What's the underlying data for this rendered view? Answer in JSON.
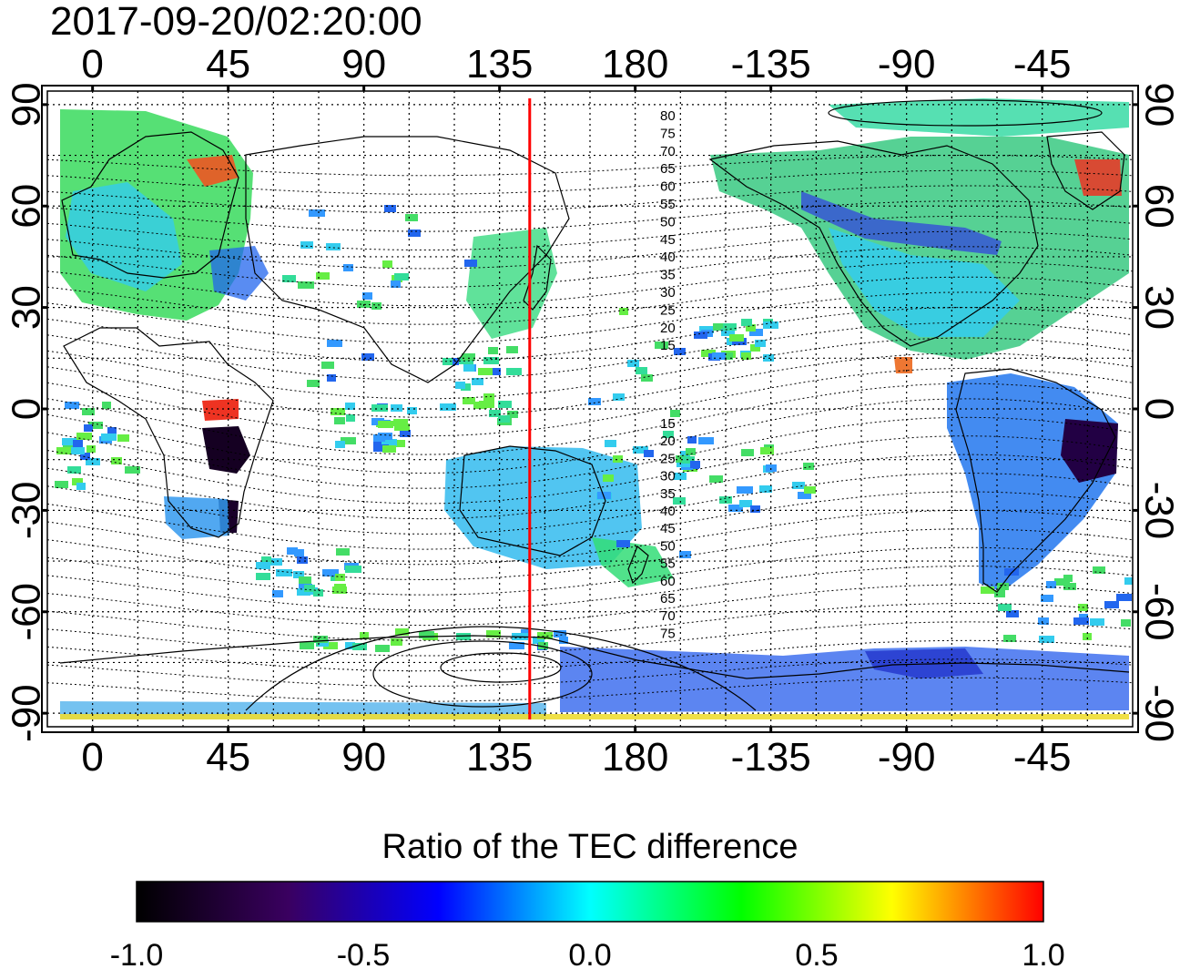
{
  "timestamp": "2017-09-20/02:20:00",
  "map": {
    "projection": "equirectangular",
    "center_longitude": 165,
    "top_axis_labels": [
      "0",
      "45",
      "90",
      "135",
      "180",
      "-135",
      "-90",
      "-45"
    ],
    "bottom_axis_labels": [
      "0",
      "45",
      "90",
      "135",
      "180",
      "-135",
      "-90",
      "-45"
    ],
    "left_axis_labels": [
      "90",
      "60",
      "30",
      "0",
      "-30",
      "-60",
      "-90"
    ],
    "right_axis_labels": [
      "90",
      "60",
      "30",
      "0",
      "-30",
      "-60",
      "-90"
    ],
    "grid": "dotted every 15 degrees",
    "marker_line_longitude": 145,
    "marker_line_color": "#ff0000",
    "contour_labels_north": [
      "80",
      "75",
      "70",
      "65",
      "60",
      "55",
      "50",
      "45",
      "40",
      "35",
      "30",
      "25",
      "20",
      "15"
    ],
    "contour_labels_south": [
      "15",
      "20",
      "25",
      "30",
      "35",
      "40",
      "45",
      "50",
      "55",
      "60",
      "65",
      "70",
      "75"
    ]
  },
  "colorbar": {
    "title": "Ratio of the TEC difference",
    "min": -1.0,
    "max": 1.0,
    "tick_labels": [
      "-1.0",
      "-0.5",
      "0.0",
      "0.5",
      "1.0"
    ],
    "stops": [
      "#000000",
      "#3a0060",
      "#0000ff",
      "#00ffff",
      "#00ff00",
      "#ffff00",
      "#ff0000"
    ]
  }
}
